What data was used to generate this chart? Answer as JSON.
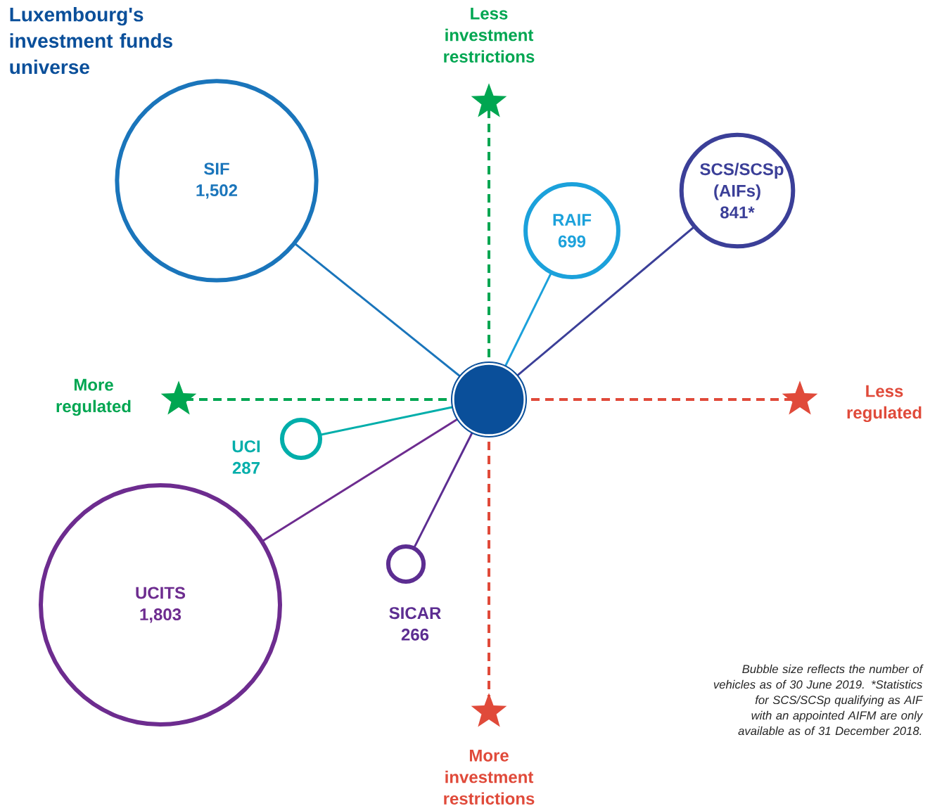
{
  "chart_data": {
    "type": "other",
    "title": "Luxembourg's investment funds universe",
    "categories": [
      "SIF",
      "RAIF",
      "SCS/SCSp (AIFs)",
      "UCI",
      "UCITS",
      "SICAR"
    ],
    "values": [
      1502,
      699,
      841,
      287,
      1803,
      266
    ],
    "value_labels": [
      "1,502",
      "699",
      "841*",
      "287",
      "1,803",
      "266"
    ],
    "colors": [
      "#1a75bb",
      "#1ba1db",
      "#3b3f98",
      "#00aeaa",
      "#6d2c8f",
      "#5c2d91"
    ],
    "annotations": [
      "Less investment restrictions",
      "Less regulated",
      "More investment restrictions",
      "More regulated",
      "Bubble size reflects the number of vehicles as of 30 June 2019. *Statistics for SCS/SCSp qualifying as AIF with an appointed AIFM are only available as of 31 December 2018."
    ]
  }
}
